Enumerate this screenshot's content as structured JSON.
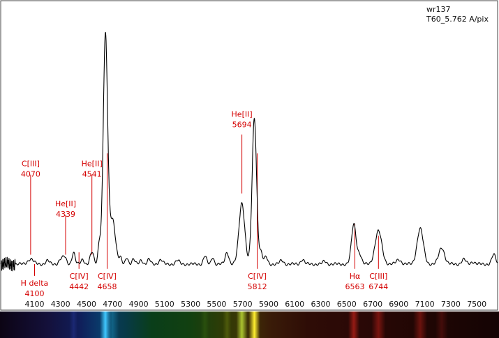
{
  "chart_data": {
    "type": "line",
    "title_lines": [
      "wr137",
      "T60_5.762 A/pix"
    ],
    "xlabel": "",
    "ylabel": "",
    "xlim": [
      3840,
      7660
    ],
    "ylim": [
      0,
      1.0
    ],
    "x_ticks": [
      4100,
      4300,
      4500,
      4700,
      4900,
      5100,
      5300,
      5500,
      5700,
      5900,
      6100,
      6300,
      6500,
      6700,
      6900,
      7100,
      7300,
      7500
    ],
    "grid": false,
    "legend": "none",
    "continuum": 0.0,
    "noise": {
      "start": 3840,
      "end": 3950,
      "amp": 0.03
    },
    "lines": [
      {
        "center": 4070,
        "amp": 0.022,
        "width": 22
      },
      {
        "center": 4200,
        "amp": 0.015,
        "width": 14
      },
      {
        "center": 4300,
        "amp": 0.02,
        "width": 14
      },
      {
        "center": 4330,
        "amp": 0.03,
        "width": 14
      },
      {
        "center": 4400,
        "amp": 0.05,
        "width": 12
      },
      {
        "center": 4470,
        "amp": 0.02,
        "width": 12
      },
      {
        "center": 4541,
        "amp": 0.05,
        "width": 14
      },
      {
        "center": 4598,
        "amp": 0.09,
        "width": 10
      },
      {
        "center": 4645,
        "amp": 0.97,
        "width": 17
      },
      {
        "center": 4700,
        "amp": 0.19,
        "width": 22
      },
      {
        "center": 4760,
        "amp": 0.025,
        "width": 10
      },
      {
        "center": 4810,
        "amp": 0.03,
        "width": 10
      },
      {
        "center": 4860,
        "amp": 0.02,
        "width": 12
      },
      {
        "center": 4920,
        "amp": 0.018,
        "width": 12
      },
      {
        "center": 4980,
        "amp": 0.02,
        "width": 12
      },
      {
        "center": 5070,
        "amp": 0.018,
        "width": 15
      },
      {
        "center": 5200,
        "amp": 0.015,
        "width": 15
      },
      {
        "center": 5410,
        "amp": 0.035,
        "width": 12
      },
      {
        "center": 5470,
        "amp": 0.03,
        "width": 10
      },
      {
        "center": 5580,
        "amp": 0.05,
        "width": 14
      },
      {
        "center": 5694,
        "amp": 0.26,
        "width": 22
      },
      {
        "center": 5790,
        "amp": 0.62,
        "width": 17
      },
      {
        "center": 5840,
        "amp": 0.05,
        "width": 13
      },
      {
        "center": 5880,
        "amp": 0.03,
        "width": 12
      },
      {
        "center": 6000,
        "amp": 0.015,
        "width": 15
      },
      {
        "center": 6160,
        "amp": 0.02,
        "width": 14
      },
      {
        "center": 6330,
        "amp": 0.012,
        "width": 14
      },
      {
        "center": 6555,
        "amp": 0.17,
        "width": 18
      },
      {
        "center": 6600,
        "amp": 0.04,
        "width": 14
      },
      {
        "center": 6744,
        "amp": 0.14,
        "width": 26
      },
      {
        "center": 6900,
        "amp": 0.02,
        "width": 18
      },
      {
        "center": 7065,
        "amp": 0.15,
        "width": 24
      },
      {
        "center": 7230,
        "amp": 0.07,
        "width": 22
      },
      {
        "center": 7400,
        "amp": 0.02,
        "width": 16
      },
      {
        "center": 7470,
        "amp": 0.01,
        "width": 16
      },
      {
        "center": 7630,
        "amp": 0.04,
        "width": 15
      }
    ],
    "annotations": [
      {
        "line1": "C[III]",
        "line2": "4070",
        "x": 4070,
        "side": "top",
        "label_y": 0.41,
        "line_top": 0.38,
        "line_bottom": 0.04
      },
      {
        "line1": "He[II]",
        "line2": "4339",
        "x": 4339,
        "side": "top",
        "label_y": 0.24,
        "line_top": 0.21,
        "line_bottom": 0.04
      },
      {
        "line1": "He[II]",
        "line2": "4541",
        "x": 4541,
        "side": "top",
        "label_y": 0.41,
        "line_top": 0.38,
        "line_bottom": 0.04
      },
      {
        "line1": "He[II]",
        "line2": "5694",
        "x": 5694,
        "side": "top",
        "label_y": 0.62,
        "line_top": 0.55,
        "line_bottom": 0.3
      },
      {
        "line1": "H delta",
        "line2": "4100",
        "x": 4100,
        "side": "bottom",
        "line_top": 0.0,
        "line_bottom": -0.05
      },
      {
        "line1": "C[IV]",
        "line2": "4442",
        "x": 4442,
        "side": "bottom",
        "line_top": 0.05,
        "line_bottom": -0.02
      },
      {
        "line1": "C[IV]",
        "line2": "4658",
        "x": 4658,
        "side": "bottom",
        "line_top": 0.47,
        "line_bottom": -0.02
      },
      {
        "line1": "C[IV]",
        "line2": "5812",
        "x": 5812,
        "side": "bottom",
        "line_top": 0.47,
        "line_bottom": -0.02
      },
      {
        "line1": "Hα",
        "line2": "6563",
        "x": 6563,
        "side": "bottom",
        "line_top": 0.17,
        "line_bottom": -0.02
      },
      {
        "line1": "C[III]",
        "line2": "6744",
        "x": 6744,
        "side": "bottom",
        "line_top": 0.12,
        "line_bottom": -0.02
      }
    ],
    "spectrum_strip": {
      "base_stops": [
        {
          "w": 3840,
          "color": "#0c0414"
        },
        {
          "w": 4200,
          "color": "#14103a"
        },
        {
          "w": 4450,
          "color": "#101e5a"
        },
        {
          "w": 4600,
          "color": "#0a3a6a"
        },
        {
          "w": 4800,
          "color": "#073a48"
        },
        {
          "w": 5000,
          "color": "#0a3e1a"
        },
        {
          "w": 5300,
          "color": "#124010"
        },
        {
          "w": 5550,
          "color": "#2f3c06"
        },
        {
          "w": 5750,
          "color": "#3f3206"
        },
        {
          "w": 5900,
          "color": "#3a1c08"
        },
        {
          "w": 6200,
          "color": "#2e0c06"
        },
        {
          "w": 6600,
          "color": "#2a0806"
        },
        {
          "w": 7100,
          "color": "#200604"
        },
        {
          "w": 7660,
          "color": "#140404"
        }
      ],
      "bright_lines": [
        {
          "w": 4645,
          "color": "#40c8ff",
          "width": 16,
          "strength": 1.0
        },
        {
          "w": 4700,
          "color": "#1a8ab0",
          "width": 18,
          "strength": 0.5
        },
        {
          "w": 5694,
          "color": "#c8e83a",
          "width": 16,
          "strength": 0.8
        },
        {
          "w": 5790,
          "color": "#ffef30",
          "width": 16,
          "strength": 1.0
        },
        {
          "w": 6555,
          "color": "#b02018",
          "width": 16,
          "strength": 0.8
        },
        {
          "w": 6744,
          "color": "#9a1a14",
          "width": 20,
          "strength": 0.7
        },
        {
          "w": 7065,
          "color": "#8a1812",
          "width": 20,
          "strength": 0.7
        },
        {
          "w": 7230,
          "color": "#6a1410",
          "width": 18,
          "strength": 0.5
        },
        {
          "w": 4400,
          "color": "#2a3aa0",
          "width": 12,
          "strength": 0.4
        },
        {
          "w": 5410,
          "color": "#3a6a10",
          "width": 12,
          "strength": 0.4
        },
        {
          "w": 5580,
          "color": "#6a7a10",
          "width": 12,
          "strength": 0.5
        }
      ]
    }
  }
}
